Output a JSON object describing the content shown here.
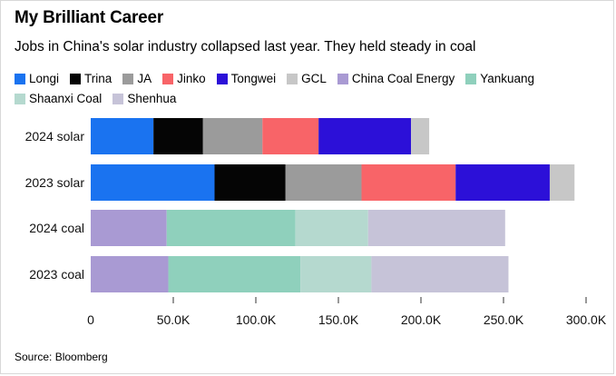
{
  "header": {
    "title": "My Brilliant Career",
    "subtitle": "Jobs in China's solar industry collapsed last year. They held steady in coal"
  },
  "footer": {
    "source": "Source: Bloomberg"
  },
  "colors": {
    "Longi": "#1a73f0",
    "Trina": "#050505",
    "JA": "#9b9b9b",
    "Jinko": "#f86468",
    "Tongwei": "#2c10d8",
    "GCL": "#c7c7c7",
    "China Coal Energy": "#a99ad3",
    "Yankuang": "#8fd0bc",
    "Shaanxi Coal": "#b5d9cf",
    "Shenhua": "#c6c3d8"
  },
  "chart_data": {
    "type": "bar",
    "orientation": "horizontal",
    "stacked": true,
    "categories": [
      "2024 solar",
      "2023 solar",
      "2024 coal",
      "2023 coal"
    ],
    "legend": [
      "Longi",
      "Trina",
      "JA",
      "Jinko",
      "Tongwei",
      "GCL",
      "China Coal Energy",
      "Yankuang",
      "Shaanxi Coal",
      "Shenhua"
    ],
    "legend_position": "top",
    "series": [
      {
        "name": "Longi",
        "values": [
          38000,
          75000,
          0,
          0
        ]
      },
      {
        "name": "Trina",
        "values": [
          30000,
          43000,
          0,
          0
        ]
      },
      {
        "name": "JA",
        "values": [
          36000,
          46000,
          0,
          0
        ]
      },
      {
        "name": "Jinko",
        "values": [
          34000,
          57000,
          0,
          0
        ]
      },
      {
        "name": "Tongwei",
        "values": [
          56000,
          57000,
          0,
          0
        ]
      },
      {
        "name": "GCL",
        "values": [
          11000,
          15000,
          0,
          0
        ]
      },
      {
        "name": "China Coal Energy",
        "values": [
          0,
          0,
          46000,
          47000
        ]
      },
      {
        "name": "Yankuang",
        "values": [
          0,
          0,
          78000,
          80000
        ]
      },
      {
        "name": "Shaanxi Coal",
        "values": [
          0,
          0,
          44000,
          43000
        ]
      },
      {
        "name": "Shenhua",
        "values": [
          0,
          0,
          83000,
          83000
        ]
      }
    ],
    "xlim": [
      0,
      300000
    ],
    "xticks": [
      0,
      50000,
      100000,
      150000,
      200000,
      250000,
      300000
    ],
    "xtick_labels": [
      "0",
      "50.0K",
      "100.0K",
      "150.0K",
      "200.0K",
      "250.0K",
      "300.0K"
    ],
    "xlabel": "",
    "ylabel": "",
    "grid": false
  }
}
